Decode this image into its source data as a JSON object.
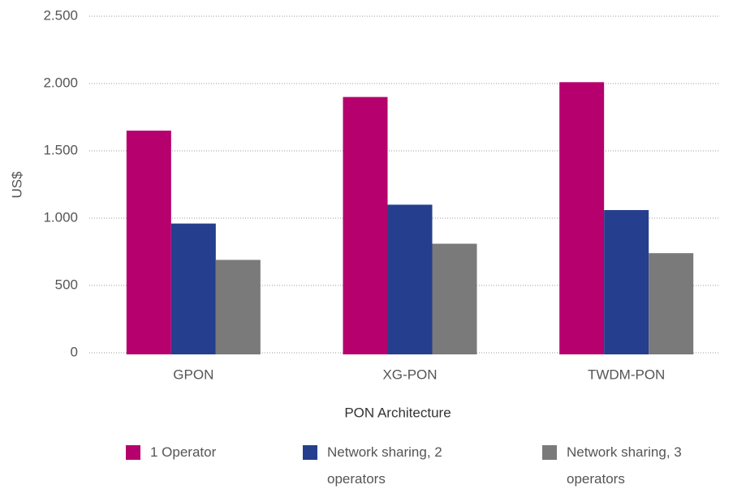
{
  "chart_data": {
    "type": "bar",
    "categories": [
      "GPON",
      "XG-PON",
      "TWDM-PON"
    ],
    "series": [
      {
        "name": "1 Operator",
        "color": "#b5006e",
        "values": [
          1650,
          1900,
          2010
        ]
      },
      {
        "name": "Network sharing, 2 operators",
        "color": "#253f8e",
        "values": [
          960,
          1100,
          1060
        ]
      },
      {
        "name": "Network sharing, 3 operators",
        "color": "#7a7a7a",
        "values": [
          690,
          810,
          740
        ]
      }
    ],
    "ylabel": "US$",
    "xlabel": "PON Architecture",
    "ylim": [
      0,
      2500
    ],
    "yticks": [
      0,
      500,
      {
        "value": 1000,
        "label": "1.000"
      },
      {
        "value": 1500,
        "label": "1.500"
      },
      {
        "value": 2000,
        "label": "2.000"
      },
      {
        "value": 2500,
        "label": "2.500"
      }
    ],
    "grid": true,
    "legend": "bottom"
  }
}
